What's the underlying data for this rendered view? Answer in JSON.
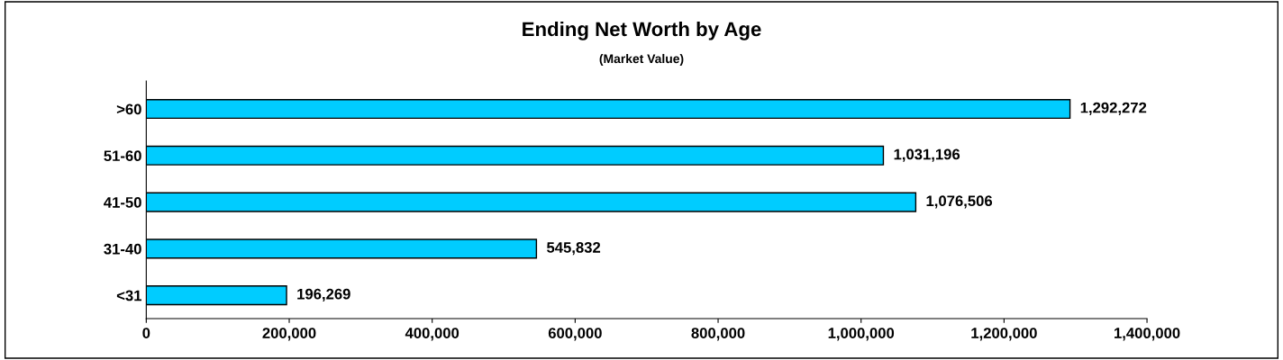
{
  "chart_data": {
    "type": "bar",
    "orientation": "horizontal",
    "title": "Ending Net Worth by Age",
    "subtitle": "(Market Value)",
    "categories": [
      ">60",
      "51-60",
      "41-50",
      "31-40",
      "<31"
    ],
    "values": [
      1292272,
      1031196,
      1076506,
      545832,
      196269
    ],
    "value_labels": [
      "1,292,272",
      "1,031,196",
      "1,076,506",
      "545,832",
      "196,269"
    ],
    "color": "#00ccff",
    "xlim": [
      0,
      1400000
    ],
    "xticks": [
      {
        "value": 0,
        "label": "0"
      },
      {
        "value": 200000,
        "label": "200,000"
      },
      {
        "value": 400000,
        "label": "400,000"
      },
      {
        "value": 600000,
        "label": "600,000"
      },
      {
        "value": 800000,
        "label": "800,000"
      },
      {
        "value": 1000000,
        "label": "1,000,000"
      },
      {
        "value": 1200000,
        "label": "1,200,000"
      },
      {
        "value": 1400000,
        "label": "1,400,000"
      }
    ],
    "grid": false,
    "legend": false
  }
}
